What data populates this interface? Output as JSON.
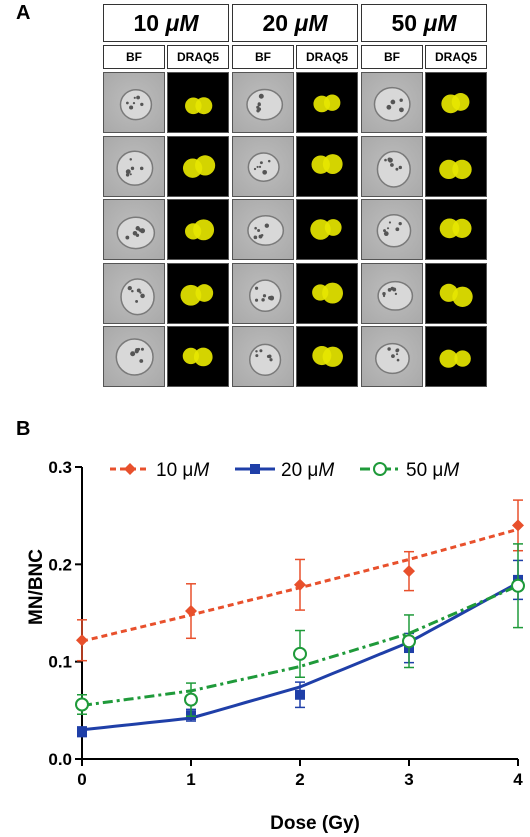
{
  "panel_a": {
    "letter": "A",
    "columns": [
      {
        "num": "10 ",
        "unit": "μM"
      },
      {
        "num": "20 ",
        "unit": "μM"
      },
      {
        "num": "50 ",
        "unit": "μM"
      }
    ],
    "channels": [
      "BF",
      "DRAQ5"
    ],
    "rows": 5,
    "colors": {
      "draq5": "#e6e600",
      "brightfield": "#a8a8a8"
    }
  },
  "panel_b": {
    "letter": "B"
  },
  "chart_data": {
    "type": "line",
    "xlabel": "Dose (Gy)",
    "ylabel": "MN/BNC",
    "xlim": [
      0,
      4
    ],
    "ylim": [
      0.0,
      0.3
    ],
    "xticks": [
      "0",
      "1",
      "2",
      "3",
      "4"
    ],
    "yticks": [
      "0.0",
      "0.1",
      "0.2",
      "0.3"
    ],
    "legend_position": "top",
    "series": [
      {
        "name": "10 μM",
        "color": "#e8502c",
        "marker": "diamond",
        "line": "dashed",
        "x": [
          0,
          1,
          2,
          3,
          4
        ],
        "y": [
          0.122,
          0.152,
          0.179,
          0.193,
          0.24
        ],
        "err": [
          0.021,
          0.028,
          0.026,
          0.02,
          0.026
        ],
        "fit": [
          0.121,
          0.148,
          0.176,
          0.205,
          0.236
        ]
      },
      {
        "name": "20 μM",
        "color": "#1f3fa8",
        "marker": "square",
        "line": "solid",
        "x": [
          0,
          1,
          2,
          3,
          4
        ],
        "y": [
          0.028,
          0.045,
          0.066,
          0.114,
          0.184
        ],
        "err": [
          0.005,
          0.006,
          0.013,
          0.015,
          0.02
        ],
        "fit": [
          0.03,
          0.042,
          0.074,
          0.12,
          0.181
        ]
      },
      {
        "name": "50 μM",
        "color": "#1f9a3a",
        "marker": "circle",
        "line": "dashdot",
        "x": [
          0,
          1,
          2,
          3,
          4
        ],
        "y": [
          0.056,
          0.061,
          0.108,
          0.121,
          0.178
        ],
        "err": [
          0.01,
          0.017,
          0.024,
          0.027,
          0.043
        ],
        "fit": [
          0.055,
          0.07,
          0.095,
          0.129,
          0.178
        ]
      }
    ]
  }
}
